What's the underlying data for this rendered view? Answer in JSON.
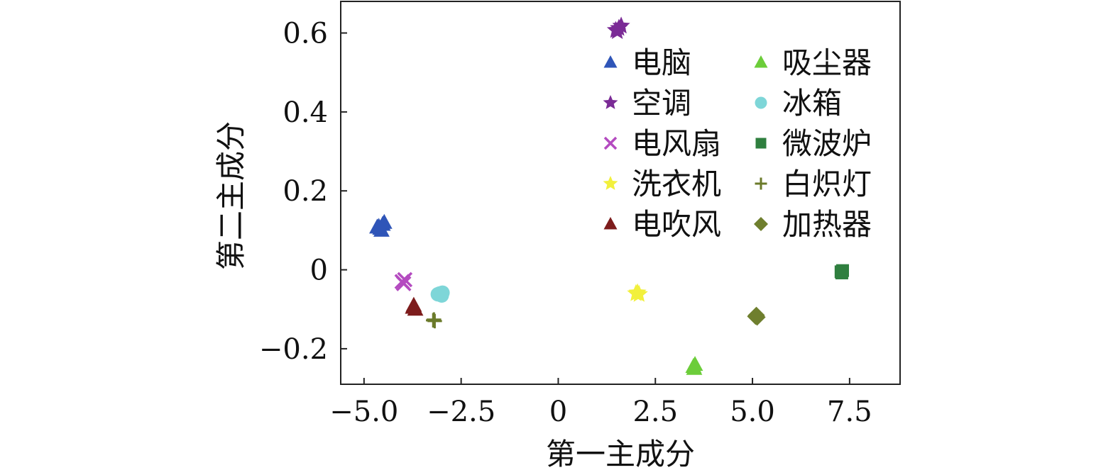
{
  "chart_data": {
    "type": "scatter",
    "xlabel": "第一主成分",
    "ylabel": "第二主成分",
    "xlim": [
      -5.6,
      8.8
    ],
    "ylim": [
      -0.29,
      0.68
    ],
    "xticks": [
      -5.0,
      -2.5,
      0,
      2.5,
      5.0,
      7.5
    ],
    "xtick_labels": [
      "−5.0",
      "−2.5",
      "0",
      "2.5",
      "5.0",
      "7.5"
    ],
    "yticks": [
      -0.2,
      0,
      0.2,
      0.4,
      0.6
    ],
    "ytick_labels": [
      "−0.2",
      "0",
      "0.2",
      "0.4",
      "0.6"
    ],
    "grid": false,
    "legend_position": "top-right",
    "legend_columns": 2,
    "series": [
      {
        "name": "电脑",
        "marker": "triangle-up",
        "color": "#2f55b8",
        "points": [
          [
            -4.62,
            0.11
          ],
          [
            -4.52,
            0.115
          ],
          [
            -4.58,
            0.105
          ],
          [
            -4.48,
            0.12
          ],
          [
            -4.55,
            0.1
          ],
          [
            -4.66,
            0.108
          ]
        ]
      },
      {
        "name": "空调",
        "marker": "star",
        "color": "#7b2b96",
        "points": [
          [
            1.48,
            0.607
          ],
          [
            1.56,
            0.612
          ],
          [
            1.62,
            0.618
          ],
          [
            1.52,
            0.604
          ]
        ]
      },
      {
        "name": "电风扇",
        "marker": "x",
        "color": "#b44bc0",
        "points": [
          [
            -4.02,
            -0.03
          ],
          [
            -3.95,
            -0.025
          ],
          [
            -3.98,
            -0.035
          ]
        ]
      },
      {
        "name": "洗衣机",
        "marker": "star",
        "color": "#f2f03c",
        "points": [
          [
            2.0,
            -0.06
          ],
          [
            2.08,
            -0.062
          ],
          [
            2.04,
            -0.058
          ]
        ]
      },
      {
        "name": "电吹风",
        "marker": "triangle-up",
        "color": "#7d1c1c",
        "points": [
          [
            -3.72,
            -0.09
          ],
          [
            -3.68,
            -0.1
          ],
          [
            -3.74,
            -0.095
          ]
        ]
      },
      {
        "name": "吸尘器",
        "marker": "triangle-up",
        "color": "#6ccd3a",
        "points": [
          [
            3.48,
            -0.245
          ],
          [
            3.52,
            -0.24
          ],
          [
            3.5,
            -0.25
          ]
        ]
      },
      {
        "name": "冰箱",
        "marker": "circle",
        "color": "#7ed6d8",
        "points": [
          [
            -3.05,
            -0.06
          ],
          [
            -3.0,
            -0.065
          ],
          [
            -3.1,
            -0.062
          ],
          [
            -2.98,
            -0.058
          ]
        ]
      },
      {
        "name": "微波炉",
        "marker": "square",
        "color": "#2f7f3f",
        "points": [
          [
            7.28,
            -0.005
          ],
          [
            7.32,
            -0.002
          ],
          [
            7.3,
            -0.008
          ]
        ]
      },
      {
        "name": "白炽灯",
        "marker": "plus",
        "color": "#6b7a2a",
        "points": [
          [
            -3.22,
            -0.128
          ],
          [
            -3.18,
            -0.13
          ],
          [
            -3.2,
            -0.126
          ]
        ]
      },
      {
        "name": "加热器",
        "marker": "diamond",
        "color": "#6f7f2e",
        "points": [
          [
            5.08,
            -0.118
          ],
          [
            5.12,
            -0.12
          ],
          [
            5.1,
            -0.115
          ]
        ]
      }
    ]
  }
}
